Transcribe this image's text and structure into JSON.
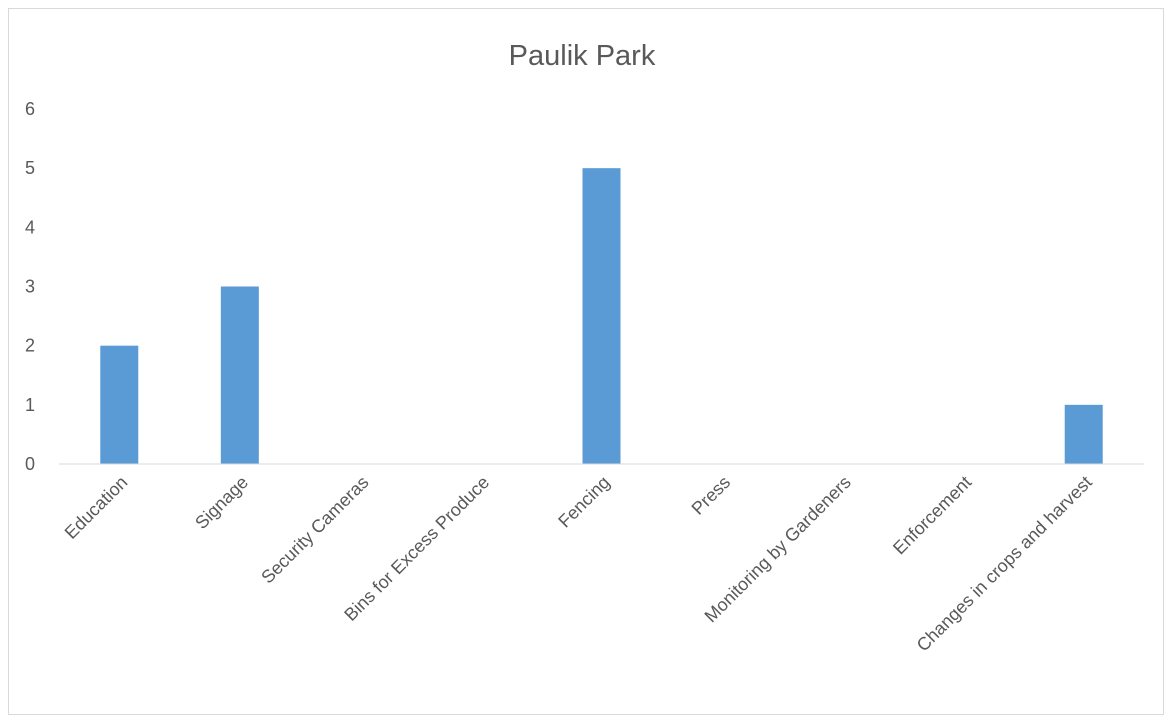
{
  "chart_data": {
    "type": "bar",
    "title": "Paulik Park",
    "xlabel": "",
    "ylabel": "",
    "categories": [
      "Education",
      "Signage",
      "Security Cameras",
      "Bins for Excess Produce",
      "Fencing",
      "Press",
      "Monitoring by Gardeners",
      "Enforcement",
      "Changes in crops and harvest"
    ],
    "values": [
      2,
      3,
      0,
      0,
      5,
      0,
      0,
      0,
      1
    ],
    "ylim": [
      0,
      6
    ],
    "yticks": [
      "0",
      "1",
      "2",
      "3",
      "4",
      "5",
      "6"
    ],
    "grid": false,
    "legend": "none",
    "bar_color": "#5b9bd5",
    "axis_color": "#d9d9d9",
    "text_color": "#595959"
  }
}
